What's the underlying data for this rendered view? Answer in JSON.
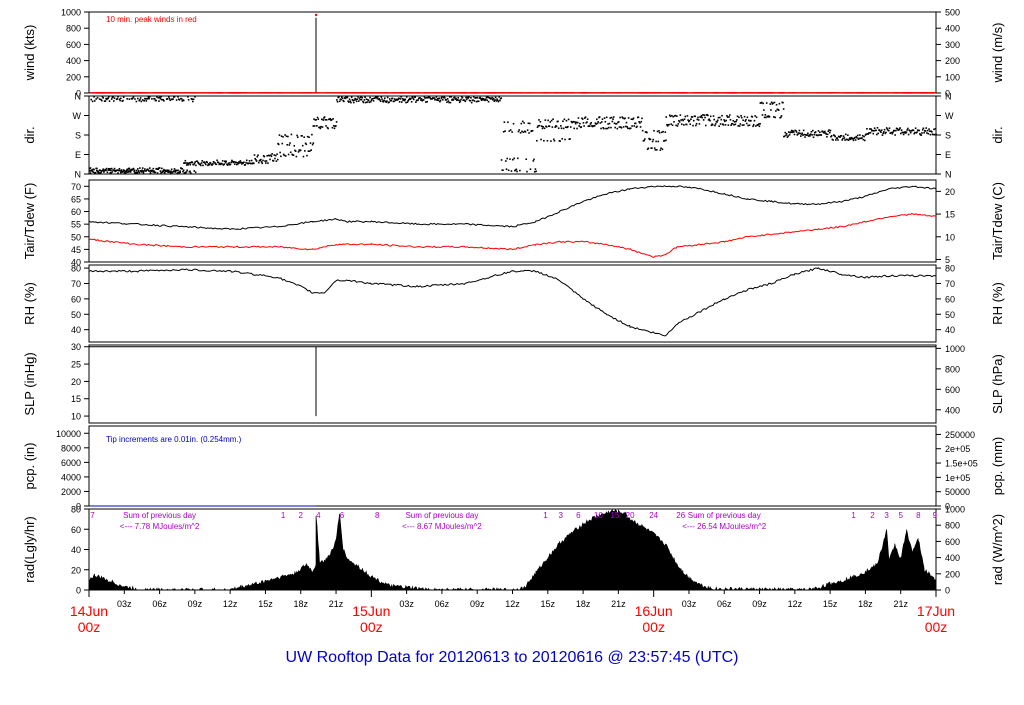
{
  "footer": {
    "title": "UW Rooftop Data for 20120613  to  20120616 @ 23:57:45  (UTC)"
  },
  "colors": {
    "primary": "#000000",
    "red": "#ff0000",
    "blue": "#0000cc",
    "purple": "#aa00cc"
  },
  "time_axis": {
    "tick_labels": [
      "03z",
      "06z",
      "09z",
      "12z",
      "15z",
      "18z",
      "21z",
      "03z",
      "06z",
      "09z",
      "12z",
      "15z",
      "18z",
      "21z",
      "03z",
      "06z",
      "09z",
      "12z",
      "15z",
      "18z",
      "21z"
    ],
    "tick_hours": [
      3,
      6,
      9,
      12,
      15,
      18,
      21,
      27,
      30,
      33,
      36,
      39,
      42,
      45,
      51,
      54,
      57,
      60,
      63,
      66,
      69
    ],
    "day_labels": [
      {
        "hour": 0,
        "date": "14Jun",
        "time": "00z"
      },
      {
        "hour": 24,
        "date": "15Jun",
        "time": "00z"
      },
      {
        "hour": 48,
        "date": "16Jun",
        "time": "00z"
      },
      {
        "hour": 72,
        "date": "17Jun",
        "time": "00z"
      }
    ]
  },
  "chart_data": [
    {
      "panel": "wind",
      "type": "line",
      "ylabel": "wind (kts)",
      "y2label": "wind (m/s)",
      "ylim": [
        0,
        1000
      ],
      "yticks": [
        0,
        200,
        400,
        600,
        800,
        1000
      ],
      "y2ticks": [
        0,
        100,
        200,
        300,
        400,
        500
      ],
      "annotation": "10 min. peak winds in red",
      "series": [
        {
          "color": "black",
          "x": [
            0,
            19,
            19.3,
            19.3,
            19.3,
            19.6,
            72
          ],
          "y": [
            3,
            3,
            3,
            930,
            3,
            3,
            3
          ]
        },
        {
          "color": "red",
          "x": [
            0,
            72
          ],
          "y": [
            5,
            5
          ]
        }
      ],
      "markers": [
        {
          "x": 19.3,
          "y": 1000,
          "color": "red"
        }
      ]
    },
    {
      "panel": "dir",
      "type": "scatter",
      "ylabel": "dir.",
      "y2label": "dir.",
      "yticks": [
        "N",
        "E",
        "S",
        "W",
        "N"
      ],
      "ylim": [
        0,
        360
      ],
      "segments": [
        {
          "x0": 0,
          "x1": 9,
          "ys": [
            345,
            355,
            15
          ]
        },
        {
          "x0": 0,
          "x1": 8,
          "ys": [
            15,
            25
          ]
        },
        {
          "x0": 8,
          "x1": 14,
          "ys": [
            50,
            60
          ]
        },
        {
          "x0": 14,
          "x1": 16,
          "ys": [
            60,
            70,
            90
          ]
        },
        {
          "x0": 16,
          "x1": 19,
          "ys": [
            90,
            110,
            140,
            180
          ]
        },
        {
          "x0": 19,
          "x1": 21,
          "ys": [
            220,
            250,
            260
          ]
        },
        {
          "x0": 21,
          "x1": 35,
          "ys": [
            340,
            350,
            355
          ]
        },
        {
          "x0": 35,
          "x1": 38,
          "ys": [
            20,
            70,
            200,
            240
          ]
        },
        {
          "x0": 38,
          "x1": 41,
          "ys": [
            160,
            220,
            250
          ]
        },
        {
          "x0": 41,
          "x1": 47,
          "ys": [
            220,
            240,
            260
          ]
        },
        {
          "x0": 47,
          "x1": 49,
          "ys": [
            120,
            160,
            200
          ]
        },
        {
          "x0": 49,
          "x1": 57,
          "ys": [
            230,
            250,
            270
          ]
        },
        {
          "x0": 57,
          "x1": 59,
          "ys": [
            270,
            300,
            330
          ]
        },
        {
          "x0": 59,
          "x1": 63,
          "ys": [
            180,
            190,
            200
          ]
        },
        {
          "x0": 63,
          "x1": 66,
          "ys": [
            165,
            180
          ]
        },
        {
          "x0": 66,
          "x1": 72,
          "ys": [
            190,
            200,
            210
          ]
        }
      ]
    },
    {
      "panel": "tair",
      "type": "line",
      "ylabel": "Tair/Tdew (F)",
      "y2label": "Tair/Tdew (C)",
      "ylim": [
        40,
        72.5
      ],
      "yticks": [
        40,
        45,
        50,
        55,
        60,
        65,
        70
      ],
      "y2ticks": [
        5,
        10,
        15,
        20
      ],
      "series": [
        {
          "name": "Tair",
          "color": "black",
          "x": [
            0,
            4,
            8,
            12,
            16,
            19,
            21,
            22,
            24,
            28,
            32,
            36,
            38,
            40,
            42,
            44,
            46,
            48,
            50,
            52,
            54,
            56,
            58,
            60,
            62,
            64,
            66,
            68,
            70,
            72
          ],
          "y": [
            56,
            55,
            54,
            53,
            54,
            56,
            57,
            56,
            56,
            55,
            55,
            54,
            56,
            60,
            64,
            67,
            69,
            70,
            70,
            69,
            67,
            65,
            64,
            63,
            63,
            64,
            66,
            69,
            70,
            69
          ]
        },
        {
          "name": "Tdew",
          "color": "red",
          "x": [
            0,
            4,
            8,
            12,
            16,
            19,
            20,
            21,
            24,
            28,
            32,
            36,
            38,
            40,
            42,
            44,
            46,
            48,
            49,
            50,
            52,
            54,
            56,
            58,
            60,
            62,
            64,
            66,
            68,
            70,
            72
          ],
          "y": [
            49,
            47,
            46,
            46,
            46,
            45,
            46,
            47,
            47,
            46,
            46,
            45,
            47,
            48,
            48,
            47,
            45,
            42,
            43,
            46,
            47,
            48,
            50,
            51,
            52,
            53,
            54,
            56,
            58,
            59,
            58
          ]
        }
      ]
    },
    {
      "panel": "rh",
      "type": "line",
      "ylabel": "RH (%)",
      "y2label": "RH (%)",
      "ylim": [
        32,
        82
      ],
      "yticks": [
        40,
        50,
        60,
        70,
        80
      ],
      "series": [
        {
          "name": "RH",
          "color": "black",
          "x": [
            0,
            4,
            8,
            12,
            16,
            18,
            19,
            20,
            21,
            22,
            24,
            28,
            32,
            36,
            38,
            40,
            42,
            44,
            46,
            48,
            49,
            50,
            52,
            54,
            56,
            58,
            60,
            62,
            64,
            66,
            68,
            70,
            72
          ],
          "y": [
            78,
            78,
            79,
            78,
            74,
            68,
            64,
            64,
            72,
            72,
            70,
            68,
            70,
            78,
            78,
            72,
            60,
            50,
            42,
            38,
            36,
            44,
            52,
            60,
            66,
            70,
            76,
            80,
            76,
            74,
            75,
            75,
            75
          ]
        }
      ]
    },
    {
      "panel": "slp",
      "type": "line",
      "ylabel": "SLP (inHg)",
      "y2label": "SLP (hPa)",
      "ylim": [
        8,
        30.5
      ],
      "yticks": [
        10,
        15,
        20,
        25,
        30
      ],
      "y2ticks": [
        400,
        600,
        800,
        1000
      ],
      "series": [
        {
          "color": "black",
          "x": [
            0,
            19,
            19.3,
            19.3,
            19.3,
            19.6,
            72
          ],
          "y": [
            30,
            30,
            30,
            10,
            30,
            30,
            30
          ]
        }
      ]
    },
    {
      "panel": "pcp",
      "type": "line",
      "ylabel": "pcp. (in)",
      "y2label": "pcp. (mm)",
      "ylim": [
        0,
        11000
      ],
      "yticks": [
        0,
        2000,
        4000,
        6000,
        8000,
        10000
      ],
      "y2ticks": [
        "0",
        "50000",
        "1e+05",
        "1.5e+05",
        "2e+05",
        "250000"
      ],
      "annotation": "Tip increments are 0.01in. (0.254mm.)",
      "series": [
        {
          "color": "#0000cc",
          "x": [
            0,
            19.3,
            19.3
          ],
          "y": [
            0,
            0,
            0
          ]
        }
      ]
    },
    {
      "panel": "rad",
      "type": "area",
      "ylabel": "rad(Lgly/hr)",
      "y2label": "rad (W/m^2)",
      "ylim": [
        0,
        80
      ],
      "yticks": [
        0,
        20,
        40,
        60,
        80
      ],
      "y2ticks": [
        0,
        200,
        400,
        600,
        800,
        1000
      ],
      "notes": [
        {
          "hour": 6,
          "line1": "Sum of previous day",
          "line2": "<--- 7.78 MJoules/m^2"
        },
        {
          "hour": 30,
          "line1": "Sum of previous day",
          "line2": "<--- 8.67 MJoules/m^2"
        },
        {
          "hour": 54,
          "line1": "Sum of previous day",
          "line2": "<--- 26.54 MJoules/m^2"
        }
      ],
      "sun_ticks": [
        {
          "hour": 0.3,
          "label": "7"
        },
        {
          "hour": 16.5,
          "label": "1"
        },
        {
          "hour": 18,
          "label": "2"
        },
        {
          "hour": 19.5,
          "label": "4"
        },
        {
          "hour": 21.5,
          "label": "6"
        },
        {
          "hour": 24.5,
          "label": "8"
        },
        {
          "hour": 38.8,
          "label": "1"
        },
        {
          "hour": 40.1,
          "label": "3"
        },
        {
          "hour": 41.6,
          "label": "6"
        },
        {
          "hour": 43.3,
          "label": "10"
        },
        {
          "hour": 44.7,
          "label": "15"
        },
        {
          "hour": 46,
          "label": "20"
        },
        {
          "hour": 48,
          "label": "24"
        },
        {
          "hour": 50.3,
          "label": "26"
        },
        {
          "hour": 65,
          "label": "1"
        },
        {
          "hour": 66.6,
          "label": "2"
        },
        {
          "hour": 67.8,
          "label": "3"
        },
        {
          "hour": 69,
          "label": "5"
        },
        {
          "hour": 70.5,
          "label": "8"
        },
        {
          "hour": 71.9,
          "label": "9"
        }
      ],
      "series": [
        {
          "color": "black",
          "x": [
            0,
            0.5,
            1.5,
            3,
            4.5,
            12,
            13,
            14.5,
            16,
            17.5,
            18.5,
            19,
            19.3,
            19.3,
            19.6,
            20,
            20.5,
            21,
            21.3,
            21.6,
            22,
            23,
            24,
            25.5,
            29,
            36,
            37,
            38,
            39,
            40,
            41,
            42,
            43,
            44,
            44.5,
            45,
            45.5,
            46,
            47,
            48,
            49,
            49.5,
            50,
            50.5,
            51,
            52,
            53,
            60,
            61,
            62,
            63,
            64,
            65,
            66,
            67,
            67.5,
            67.8,
            68,
            68.5,
            69,
            69.5,
            70,
            70.5,
            71,
            72
          ],
          "y": [
            10,
            14,
            10,
            3,
            0,
            0,
            3,
            7,
            12,
            16,
            25,
            18,
            25,
            75,
            28,
            28,
            35,
            48,
            75,
            40,
            30,
            22,
            13,
            4,
            0,
            0,
            2,
            17,
            32,
            46,
            56,
            65,
            72,
            76,
            78,
            77,
            76,
            70,
            63,
            55,
            45,
            35,
            25,
            18,
            12,
            5,
            1,
            0,
            0,
            2,
            6,
            9,
            13,
            18,
            25,
            45,
            60,
            28,
            45,
            30,
            58,
            38,
            50,
            20,
            10
          ]
        }
      ]
    }
  ]
}
